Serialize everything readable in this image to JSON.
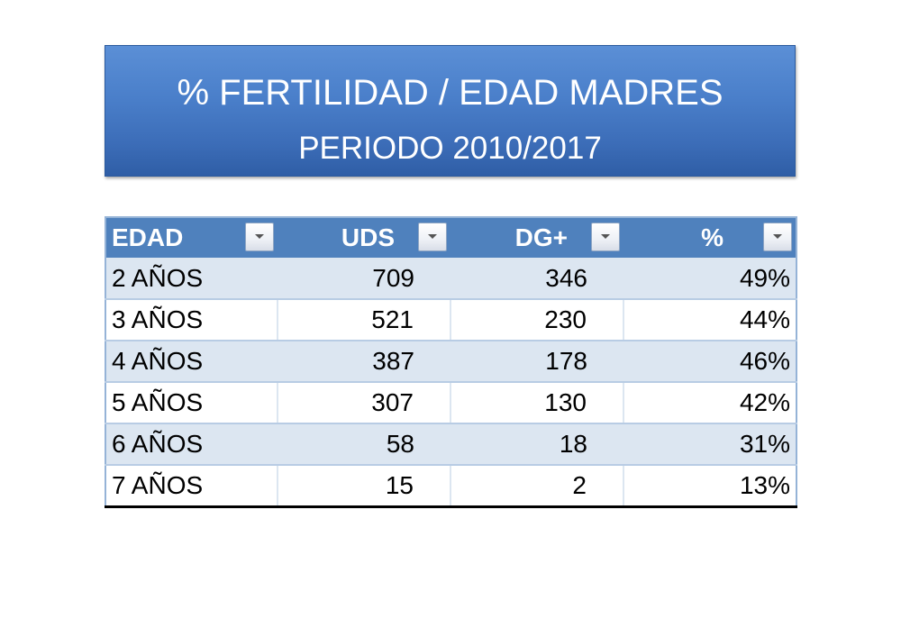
{
  "banner": {
    "title": "% FERTILIDAD / EDAD MADRES",
    "subtitle": "PERIODO 2010/2017"
  },
  "table": {
    "headers": [
      "EDAD",
      "UDS",
      "DG+",
      "%"
    ],
    "rows": [
      [
        "2 AÑOS",
        "709",
        "346",
        "49%"
      ],
      [
        "3 AÑOS",
        "521",
        "230",
        "44%"
      ],
      [
        "4 AÑOS",
        "387",
        "178",
        "46%"
      ],
      [
        "5 AÑOS",
        "307",
        "130",
        "42%"
      ],
      [
        "6 AÑOS",
        "58",
        "18",
        "31%"
      ],
      [
        "7 AÑOS",
        "15",
        "2",
        "13%"
      ]
    ]
  },
  "colors": {
    "header_bg": "#4f81bd",
    "banner_bg": "#4a7fca",
    "band_row": "#dce6f1"
  },
  "icons": {
    "filter": "dropdown-arrow-icon"
  }
}
